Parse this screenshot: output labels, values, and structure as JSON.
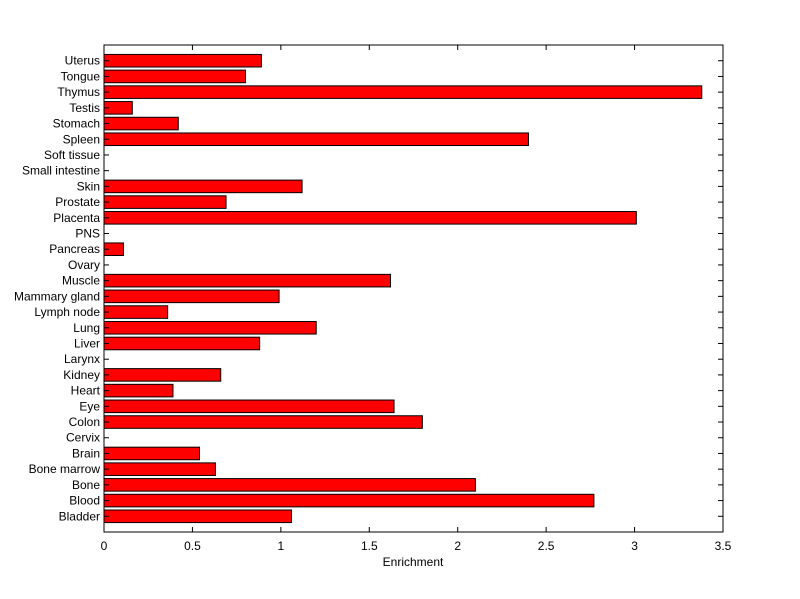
{
  "chart_data": {
    "type": "bar",
    "orientation": "horizontal",
    "xlabel": "Enrichment",
    "ylabel": "",
    "title": "",
    "xlim": [
      0,
      3.5
    ],
    "xticks": [
      "0",
      "0.5",
      "1",
      "1.5",
      "2",
      "2.5",
      "3",
      "3.5"
    ],
    "grid": false,
    "bar_color": "#ff0000",
    "bar_edge_color": "#000000",
    "categories": [
      "Bladder",
      "Blood",
      "Bone",
      "Bone marrow",
      "Brain",
      "Cervix",
      "Colon",
      "Eye",
      "Heart",
      "Kidney",
      "Larynx",
      "Liver",
      "Lung",
      "Lymph node",
      "Mammary gland",
      "Muscle",
      "Ovary",
      "Pancreas",
      "PNS",
      "Placenta",
      "Prostate",
      "Skin",
      "Small intestine",
      "Soft tissue",
      "Spleen",
      "Stomach",
      "Testis",
      "Thymus",
      "Tongue",
      "Uterus"
    ],
    "values": [
      1.06,
      2.77,
      2.1,
      0.63,
      0.54,
      0,
      1.8,
      1.64,
      0.39,
      0.66,
      0,
      0.88,
      1.2,
      0.36,
      0.99,
      1.62,
      0,
      0.11,
      0,
      3.01,
      0.69,
      1.12,
      0,
      0,
      2.4,
      0.42,
      0.16,
      3.38,
      0.8,
      0.89
    ]
  }
}
